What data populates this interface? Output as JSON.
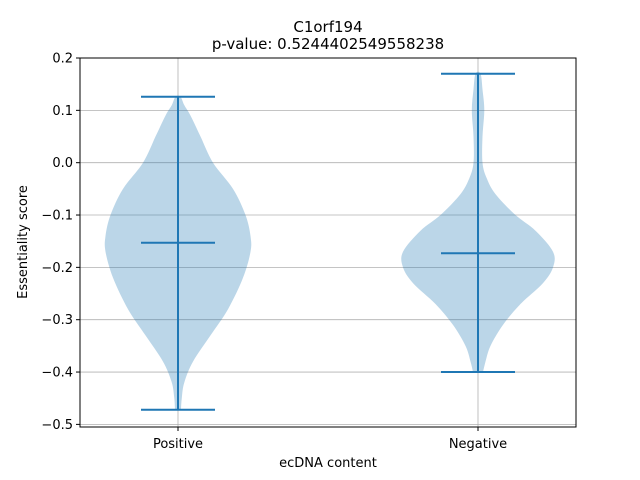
{
  "chart_data": {
    "type": "violin",
    "title": "C1orf194",
    "subtitle": "p-value: 0.5244402549558238",
    "xlabel": "ecDNA content",
    "ylabel": "Essentiality score",
    "categories": [
      "Positive",
      "Negative"
    ],
    "ylim": [
      -0.505,
      0.2
    ],
    "yticks": [
      -0.5,
      -0.4,
      -0.3,
      -0.2,
      -0.1,
      0.0,
      0.1,
      0.2
    ],
    "ytick_labels": [
      "−0.5",
      "−0.4",
      "−0.3",
      "−0.2",
      "−0.1",
      "0.0",
      "0.1",
      "0.2"
    ],
    "grid": true,
    "violin_color": "#1f77b4",
    "violins": [
      {
        "name": "Positive",
        "min": -0.472,
        "max": 0.126,
        "median": -0.153,
        "profile": [
          [
            -0.472,
            0.012
          ],
          [
            -0.45,
            0.015
          ],
          [
            -0.42,
            0.025
          ],
          [
            -0.38,
            0.06
          ],
          [
            -0.33,
            0.13
          ],
          [
            -0.28,
            0.2
          ],
          [
            -0.22,
            0.26
          ],
          [
            -0.17,
            0.29
          ],
          [
            -0.14,
            0.29
          ],
          [
            -0.1,
            0.27
          ],
          [
            -0.05,
            0.22
          ],
          [
            0.0,
            0.14
          ],
          [
            0.05,
            0.09
          ],
          [
            0.09,
            0.05
          ],
          [
            0.11,
            0.025
          ],
          [
            0.126,
            0.01
          ]
        ]
      },
      {
        "name": "Negative",
        "min": -0.4,
        "max": 0.17,
        "median": -0.173,
        "profile": [
          [
            -0.4,
            0.02
          ],
          [
            -0.38,
            0.03
          ],
          [
            -0.35,
            0.05
          ],
          [
            -0.31,
            0.1
          ],
          [
            -0.27,
            0.17
          ],
          [
            -0.23,
            0.26
          ],
          [
            -0.2,
            0.3
          ],
          [
            -0.17,
            0.3
          ],
          [
            -0.13,
            0.23
          ],
          [
            -0.1,
            0.15
          ],
          [
            -0.06,
            0.07
          ],
          [
            -0.03,
            0.035
          ],
          [
            0.0,
            0.018
          ],
          [
            0.05,
            0.018
          ],
          [
            0.1,
            0.025
          ],
          [
            0.14,
            0.018
          ],
          [
            0.17,
            0.01
          ]
        ]
      }
    ]
  }
}
